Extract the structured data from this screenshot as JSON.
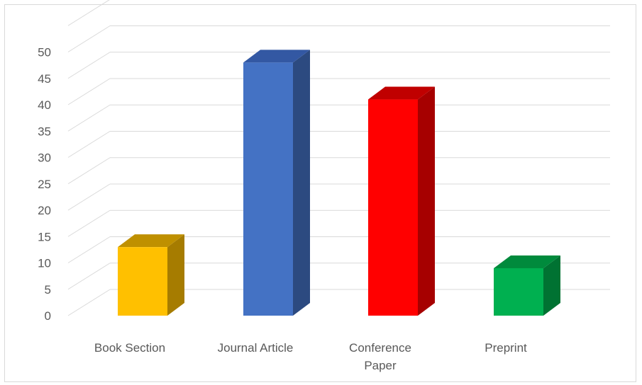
{
  "chart_data": {
    "type": "bar",
    "style": "3d-clustered-column",
    "title": "",
    "xlabel": "",
    "ylabel": "",
    "ylim": [
      0,
      50
    ],
    "y_ticks": [
      "0",
      "5",
      "10",
      "15",
      "20",
      "25",
      "30",
      "35",
      "40",
      "45",
      "50"
    ],
    "grid": true,
    "legend": "none",
    "categories": [
      [
        "Book Section"
      ],
      [
        "Journal  Article"
      ],
      [
        "Conference",
        "Paper"
      ],
      [
        "Preprint"
      ]
    ],
    "values": [
      13,
      48,
      41,
      9
    ],
    "colors": {
      "front": [
        "#ffc000",
        "#4472c4",
        "#ff0000",
        "#00b050"
      ],
      "side": [
        "#a67c00",
        "#2c4a80",
        "#a60000",
        "#007232"
      ],
      "top": [
        "#bf9000",
        "#3358a3",
        "#c00000",
        "#008a3c"
      ]
    }
  }
}
